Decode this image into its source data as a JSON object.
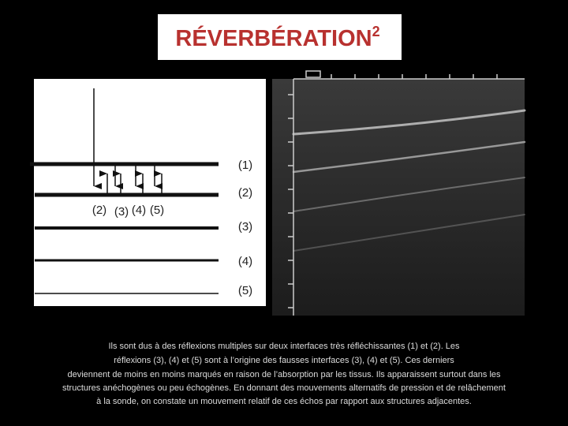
{
  "header": {
    "title": "RÉVERBÉRATION",
    "superscript": "2"
  },
  "diagram": {
    "interface_labels": [
      "(1)",
      "(2)",
      "(3)",
      "(4)",
      "(5)"
    ],
    "echo_labels": [
      "(2)",
      "(3)",
      "(4)",
      "(5)"
    ]
  },
  "caption": {
    "lines": [
      "Ils sont dus à des réflexions multiples sur deux interfaces très réfléchissantes (1) et (2). Les",
      "réflexions (3), (4) et (5) sont à l’origine des fausses interfaces (3), (4) et (5). Ces derniers",
      "deviennent de moins en moins marqués en raison de l’absorption par les tissus. Ils apparaissent surtout dans les",
      "structures anéchogènes ou peu échogènes. En donnant des mouvements alternatifs de pression et de relâchement",
      "à la sonde, on constate un mouvement relatif de ces échos par rapport aux structures adjacentes."
    ]
  }
}
